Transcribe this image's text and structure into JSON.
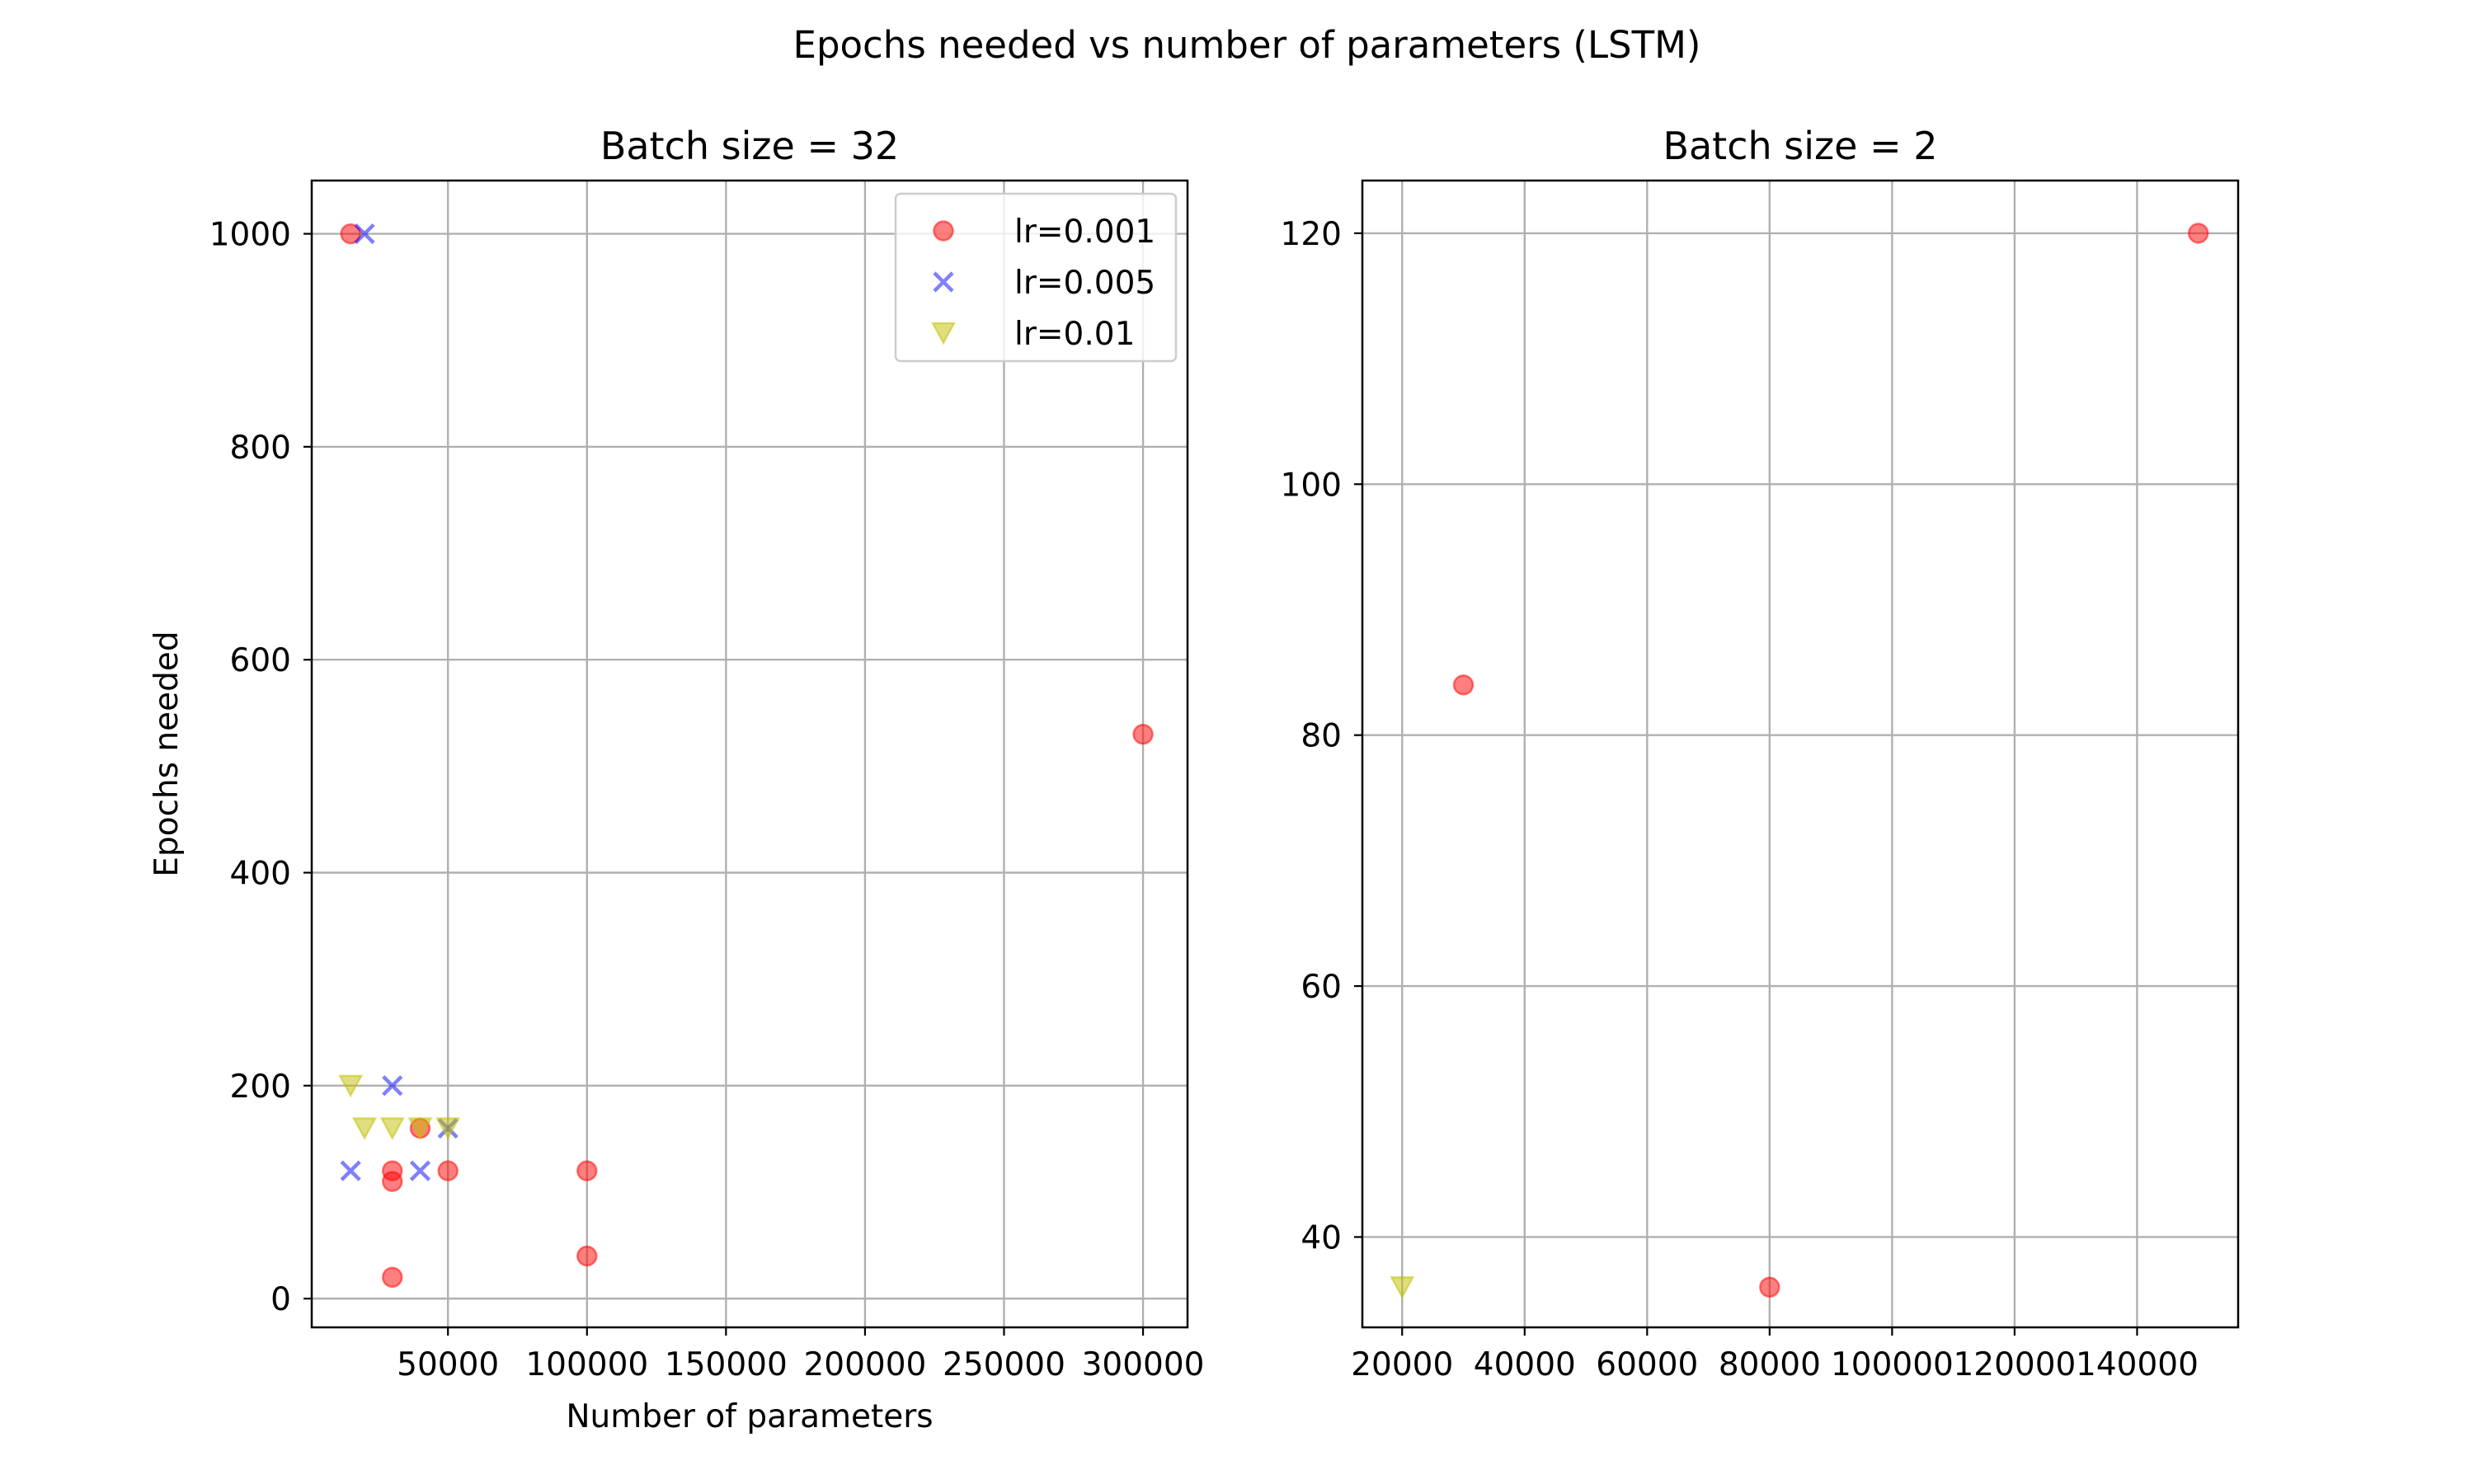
{
  "figure": {
    "suptitle": "Epochs needed vs number of parameters (LSTM)"
  },
  "chart_data": [
    {
      "type": "scatter",
      "title": "Batch size = 32",
      "xlabel": "Number of parameters",
      "ylabel": "Epochs needed",
      "xlim": [
        1000,
        316000
      ],
      "ylim": [
        -27,
        1050
      ],
      "xticks": [
        50000,
        100000,
        150000,
        200000,
        250000,
        300000
      ],
      "xtick_labels": [
        "50000",
        "100000",
        "150000",
        "200000",
        "250000",
        "300000"
      ],
      "yticks": [
        0,
        200,
        400,
        600,
        800,
        1000
      ],
      "ytick_labels": [
        "0",
        "200",
        "400",
        "600",
        "800",
        "1000"
      ],
      "grid": true,
      "legend": {
        "placement": "top-right",
        "entries": [
          "lr=0.001",
          "lr=0.005",
          "lr=0.01"
        ]
      },
      "series": [
        {
          "name": "lr=0.001",
          "marker": "circle",
          "color": "#ff0000",
          "points": [
            {
              "x": 15000,
              "y": 1000
            },
            {
              "x": 30000,
              "y": 120
            },
            {
              "x": 30000,
              "y": 110
            },
            {
              "x": 30000,
              "y": 20
            },
            {
              "x": 40000,
              "y": 160
            },
            {
              "x": 50000,
              "y": 120
            },
            {
              "x": 100000,
              "y": 120
            },
            {
              "x": 100000,
              "y": 40
            },
            {
              "x": 300000,
              "y": 530
            }
          ]
        },
        {
          "name": "lr=0.005",
          "marker": "x",
          "color": "#0000ff",
          "points": [
            {
              "x": 20000,
              "y": 1000
            },
            {
              "x": 30000,
              "y": 200
            },
            {
              "x": 15000,
              "y": 120
            },
            {
              "x": 40000,
              "y": 120
            },
            {
              "x": 50000,
              "y": 160
            }
          ]
        },
        {
          "name": "lr=0.01",
          "marker": "triangle-down",
          "color": "#bfbf00",
          "points": [
            {
              "x": 15000,
              "y": 200
            },
            {
              "x": 20000,
              "y": 160
            },
            {
              "x": 30000,
              "y": 160
            },
            {
              "x": 40000,
              "y": 160
            },
            {
              "x": 50000,
              "y": 160
            }
          ]
        }
      ]
    },
    {
      "type": "scatter",
      "title": "Batch size = 2",
      "xlabel": "",
      "ylabel": "",
      "xlim": [
        13500,
        156500
      ],
      "ylim": [
        32.8,
        124.2
      ],
      "xticks": [
        20000,
        40000,
        60000,
        80000,
        100000,
        120000,
        140000
      ],
      "xtick_labels": [
        "20000",
        "40000",
        "60000",
        "80000",
        "100000",
        "120000",
        "140000"
      ],
      "yticks": [
        40,
        60,
        80,
        100,
        120
      ],
      "ytick_labels": [
        "40",
        "60",
        "80",
        "100",
        "120"
      ],
      "grid": true,
      "series": [
        {
          "name": "lr=0.001",
          "marker": "circle",
          "color": "#ff0000",
          "points": [
            {
              "x": 30000,
              "y": 84
            },
            {
              "x": 80000,
              "y": 36
            },
            {
              "x": 150000,
              "y": 120
            }
          ]
        },
        {
          "name": "lr=0.01",
          "marker": "triangle-down",
          "color": "#bfbf00",
          "points": [
            {
              "x": 20000,
              "y": 36
            }
          ]
        }
      ]
    }
  ]
}
